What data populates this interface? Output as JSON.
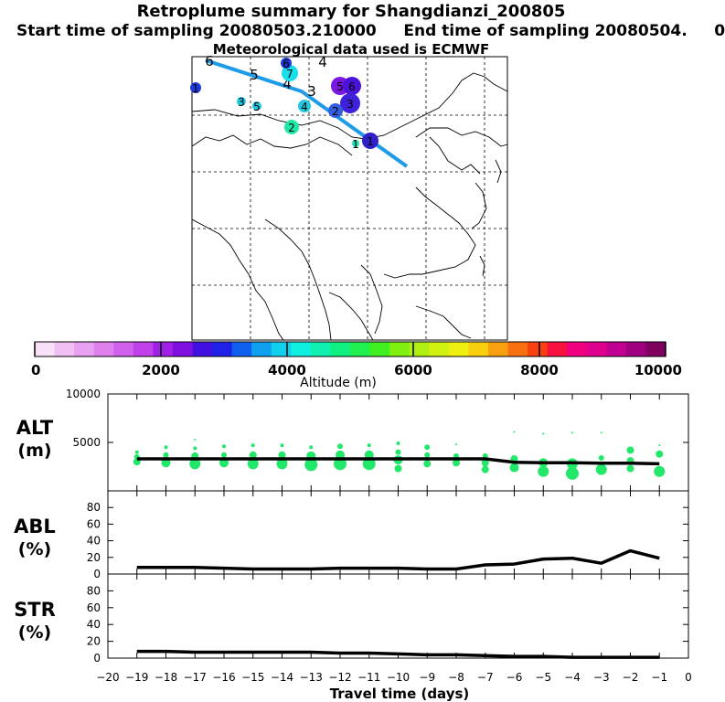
{
  "header": {
    "title": "Retroplume summary for Shangdianzi_200805",
    "subtitle": "Start time of sampling 20080503.210000     End time of sampling 20080504.     0",
    "met_note": "Meteorological data used is ECMWF"
  },
  "map": {
    "track_color": "#1e9be8",
    "track": [
      [
        225,
        66
      ],
      [
        330,
        100
      ],
      [
        445,
        182
      ]
    ],
    "markers": [
      {
        "label": "6",
        "x": 229,
        "y": 67,
        "size": 0,
        "color": "#000000"
      },
      {
        "label": "5",
        "x": 278,
        "y": 82,
        "size": 0,
        "color": "#000000"
      },
      {
        "label": "4",
        "x": 353,
        "y": 68,
        "size": 0,
        "color": "#000000"
      },
      {
        "label": "4",
        "x": 314,
        "y": 92,
        "size": 0,
        "color": "#000000"
      },
      {
        "label": "3",
        "x": 341,
        "y": 100,
        "size": 0,
        "color": "#000000"
      },
      {
        "label": "7",
        "x": 317,
        "y": 80,
        "size": 9,
        "color": "#18e0ea"
      },
      {
        "label": "6",
        "x": 313,
        "y": 69,
        "size": 6,
        "color": "#1c3ad8"
      },
      {
        "label": "1",
        "x": 214,
        "y": 96,
        "size": 6,
        "color": "#1c3ad8"
      },
      {
        "label": "3",
        "x": 264,
        "y": 111,
        "size": 5,
        "color": "#22c8e0"
      },
      {
        "label": "5",
        "x": 281,
        "y": 116,
        "size": 5,
        "color": "#22c8e0"
      },
      {
        "label": "4",
        "x": 333,
        "y": 116,
        "size": 7,
        "color": "#22c8e0"
      },
      {
        "label": "2",
        "x": 319,
        "y": 139,
        "size": 8,
        "color": "#1ee8a8"
      },
      {
        "label": "5",
        "x": 372,
        "y": 94,
        "size": 10,
        "color": "#7a18e0"
      },
      {
        "label": "6",
        "x": 385,
        "y": 94,
        "size": 10,
        "color": "#4a14d8"
      },
      {
        "label": "3",
        "x": 383,
        "y": 113,
        "size": 11,
        "color": "#4020d8"
      },
      {
        "label": "2",
        "x": 367,
        "y": 121,
        "size": 8,
        "color": "#3060e0"
      },
      {
        "label": "1",
        "x": 405,
        "y": 154,
        "size": 9,
        "color": "#3020c8"
      },
      {
        "label": "1",
        "x": 389,
        "y": 157,
        "size": 4,
        "color": "#22e0b0"
      }
    ]
  },
  "colorbar": {
    "title": "Altitude (m)",
    "tick_labels": [
      "0",
      "2000",
      "4000",
      "6000",
      "8000",
      "10000"
    ],
    "colors": [
      "#f8e0f8",
      "#f0c0f4",
      "#e8a0f0",
      "#e080ee",
      "#d060ec",
      "#c040ea",
      "#a020e8",
      "#8010e0",
      "#4010e0",
      "#2020e8",
      "#1060f0",
      "#10a0f0",
      "#10d0f0",
      "#10f0e0",
      "#10f0b0",
      "#10f080",
      "#20f050",
      "#40f020",
      "#80f010",
      "#b0f010",
      "#d0f010",
      "#f0f010",
      "#f8d010",
      "#f8a010",
      "#f87010",
      "#f84010",
      "#f81040",
      "#f00080",
      "#e00090",
      "#c00090",
      "#a00080",
      "#800060"
    ]
  },
  "chart_data": [
    {
      "type": "scatter+line",
      "name": "ALT",
      "ylabel": "ALT\n(m)",
      "ylabel_line1": "ALT",
      "ylabel_line2": "(m)",
      "ylim": [
        0,
        10000
      ],
      "yticks": [
        "5000",
        "10000"
      ],
      "x": [
        -19,
        -18,
        -17,
        -16,
        -15,
        -14,
        -13,
        -12,
        -11,
        -10,
        -9,
        -8,
        -7,
        -6,
        -5,
        -4,
        -3,
        -2,
        -1
      ],
      "mean_line": [
        3300,
        3300,
        3300,
        3300,
        3300,
        3300,
        3300,
        3300,
        3300,
        3300,
        3300,
        3300,
        3300,
        2950,
        2900,
        2900,
        2850,
        2850,
        2800
      ],
      "point_color": "#22e86a",
      "points": [
        {
          "x": -19,
          "y": 3500,
          "r": 3
        },
        {
          "x": -19,
          "y": 3000,
          "r": 4
        },
        {
          "x": -19,
          "y": 4000,
          "r": 2
        },
        {
          "x": -18,
          "y": 2900,
          "r": 5
        },
        {
          "x": -18,
          "y": 3700,
          "r": 3
        },
        {
          "x": -18,
          "y": 4500,
          "r": 2
        },
        {
          "x": -17,
          "y": 2800,
          "r": 6
        },
        {
          "x": -17,
          "y": 3600,
          "r": 4
        },
        {
          "x": -17,
          "y": 4400,
          "r": 2
        },
        {
          "x": -17,
          "y": 5300,
          "r": 1
        },
        {
          "x": -16,
          "y": 2900,
          "r": 5
        },
        {
          "x": -16,
          "y": 3700,
          "r": 3
        },
        {
          "x": -16,
          "y": 4600,
          "r": 2
        },
        {
          "x": -15,
          "y": 2800,
          "r": 6
        },
        {
          "x": -15,
          "y": 3700,
          "r": 4
        },
        {
          "x": -15,
          "y": 4700,
          "r": 2
        },
        {
          "x": -14,
          "y": 2800,
          "r": 6
        },
        {
          "x": -14,
          "y": 3700,
          "r": 4
        },
        {
          "x": -14,
          "y": 4700,
          "r": 2
        },
        {
          "x": -13,
          "y": 2700,
          "r": 7
        },
        {
          "x": -13,
          "y": 3600,
          "r": 5
        },
        {
          "x": -13,
          "y": 4500,
          "r": 2
        },
        {
          "x": -12,
          "y": 2800,
          "r": 7
        },
        {
          "x": -12,
          "y": 3700,
          "r": 5
        },
        {
          "x": -12,
          "y": 4600,
          "r": 3
        },
        {
          "x": -11,
          "y": 2800,
          "r": 7
        },
        {
          "x": -11,
          "y": 3700,
          "r": 5
        },
        {
          "x": -11,
          "y": 4700,
          "r": 2
        },
        {
          "x": -10,
          "y": 2300,
          "r": 4
        },
        {
          "x": -10,
          "y": 3200,
          "r": 5
        },
        {
          "x": -10,
          "y": 4000,
          "r": 3
        },
        {
          "x": -10,
          "y": 4900,
          "r": 2
        },
        {
          "x": -9,
          "y": 2800,
          "r": 4
        },
        {
          "x": -9,
          "y": 3700,
          "r": 3
        },
        {
          "x": -9,
          "y": 4500,
          "r": 3
        },
        {
          "x": -8,
          "y": 2900,
          "r": 4
        },
        {
          "x": -8,
          "y": 3600,
          "r": 3
        },
        {
          "x": -8,
          "y": 4800,
          "r": 1
        },
        {
          "x": -7,
          "y": 2200,
          "r": 4
        },
        {
          "x": -7,
          "y": 2900,
          "r": 4
        },
        {
          "x": -7,
          "y": 3600,
          "r": 3
        },
        {
          "x": -6,
          "y": 2400,
          "r": 5
        },
        {
          "x": -6,
          "y": 3300,
          "r": 4
        },
        {
          "x": -6,
          "y": 6100,
          "r": 1
        },
        {
          "x": -5,
          "y": 2000,
          "r": 6
        },
        {
          "x": -5,
          "y": 2900,
          "r": 5
        },
        {
          "x": -5,
          "y": 5900,
          "r": 1
        },
        {
          "x": -4,
          "y": 1800,
          "r": 7
        },
        {
          "x": -4,
          "y": 2800,
          "r": 6
        },
        {
          "x": -4,
          "y": 6000,
          "r": 1
        },
        {
          "x": -3,
          "y": 2200,
          "r": 6
        },
        {
          "x": -3,
          "y": 3400,
          "r": 3
        },
        {
          "x": -3,
          "y": 6000,
          "r": 1
        },
        {
          "x": -2,
          "y": 2300,
          "r": 4
        },
        {
          "x": -2,
          "y": 3100,
          "r": 4
        },
        {
          "x": -2,
          "y": 4200,
          "r": 4
        },
        {
          "x": -1,
          "y": 2000,
          "r": 6
        },
        {
          "x": -1,
          "y": 3800,
          "r": 4
        },
        {
          "x": -1,
          "y": 4700,
          "r": 1
        }
      ]
    },
    {
      "type": "line",
      "name": "ABL",
      "ylabel_line1": "ABL",
      "ylabel_line2": "(%)",
      "ylim": [
        0,
        100
      ],
      "yticks": [
        "0",
        "20",
        "40",
        "60",
        "80"
      ],
      "x": [
        -19,
        -18,
        -17,
        -16,
        -15,
        -14,
        -13,
        -12,
        -11,
        -10,
        -9,
        -8,
        -7,
        -6,
        -5,
        -4,
        -3,
        -2,
        -1
      ],
      "values": [
        8,
        8,
        8,
        7,
        6,
        6,
        6,
        7,
        7,
        7,
        6,
        6,
        11,
        12,
        18,
        19,
        13,
        28,
        19
      ]
    },
    {
      "type": "line",
      "name": "STR",
      "ylabel_line1": "STR",
      "ylabel_line2": "(%)",
      "ylim": [
        0,
        100
      ],
      "yticks": [
        "0",
        "20",
        "40",
        "60",
        "80"
      ],
      "x": [
        -19,
        -18,
        -17,
        -16,
        -15,
        -14,
        -13,
        -12,
        -11,
        -10,
        -9,
        -8,
        -7,
        -6,
        -5,
        -4,
        -3,
        -2,
        -1
      ],
      "values": [
        8,
        8,
        7,
        7,
        7,
        7,
        7,
        6,
        6,
        5,
        4,
        4,
        3,
        2,
        2,
        1,
        1,
        1,
        1
      ]
    }
  ],
  "x_axis": {
    "xlabel": "Travel time (days)",
    "xlim": [
      -20,
      0
    ],
    "tick_labels": [
      "−20",
      "−19",
      "−18",
      "−17",
      "−16",
      "−15",
      "−14",
      "−13",
      "−12",
      "−11",
      "−10",
      "−9",
      "−8",
      "−7",
      "−6",
      "−5",
      "−4",
      "−3",
      "−2",
      "−1",
      "0"
    ]
  }
}
